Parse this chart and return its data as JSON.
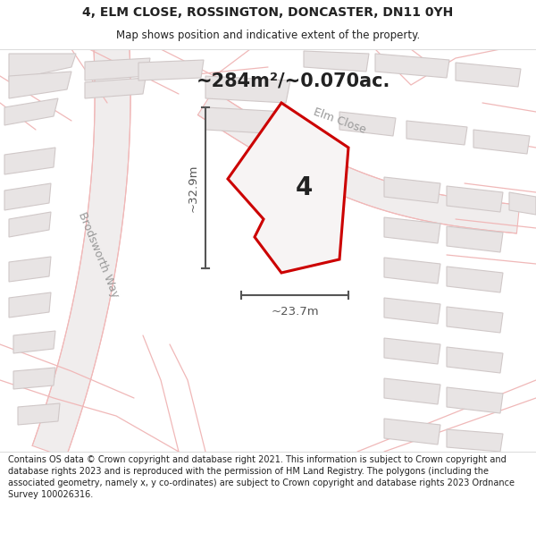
{
  "title_line1": "4, ELM CLOSE, ROSSINGTON, DONCASTER, DN11 0YH",
  "title_line2": "Map shows position and indicative extent of the property.",
  "area_text": "~284m²/~0.070ac.",
  "property_number": "4",
  "dim_width": "~23.7m",
  "dim_height": "~32.9m",
  "road_label_elm": "Elm Close",
  "road_label_brod": "Brodsworth Way",
  "footer_text": "Contains OS data © Crown copyright and database right 2021. This information is subject to Crown copyright and database rights 2023 and is reproduced with the permission of HM Land Registry. The polygons (including the associated geometry, namely x, y co-ordinates) are subject to Crown copyright and database rights 2023 Ordnance Survey 100026316.",
  "map_bg": "#f7f4f4",
  "road_color": "#f0b8b8",
  "road_fill": "#f0eded",
  "building_fill": "#e8e4e4",
  "building_edge": "#d0c8c8",
  "plot_color": "#cc0000",
  "plot_fill": "#f7f4f4",
  "dim_color": "#555555",
  "label_color": "#999999",
  "text_color": "#222222",
  "footer_bg": "#ffffff",
  "title_bg": "#ffffff",
  "sep_color": "#dddddd"
}
